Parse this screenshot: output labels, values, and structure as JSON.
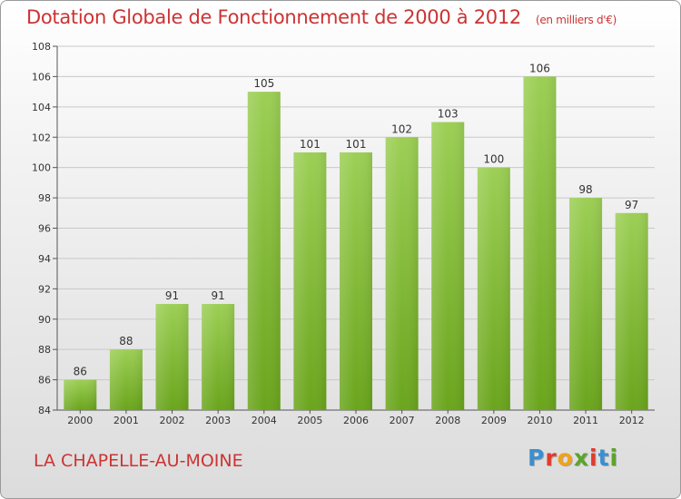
{
  "header": {
    "title": "Dotation Globale de Fonctionnement de 2000 à 2012",
    "unit": "(en milliers d'€)"
  },
  "footer": {
    "commune": "LA CHAPELLE-AU-MOINE",
    "logo_letters": [
      "P",
      "r",
      "o",
      "x",
      "i",
      "t",
      "i"
    ],
    "logo_colors": [
      "#3a8fd0",
      "#e23b2e",
      "#f0a21a",
      "#5aa52a",
      "#e23b2e",
      "#3a8fd0",
      "#5aa52a"
    ]
  },
  "colors": {
    "title": "#cc3333",
    "bar_top": "#9ccf55",
    "bar_bottom": "#6aa51c",
    "grid": "#c8c8c8",
    "axis": "#555555"
  },
  "chart_data": {
    "type": "bar",
    "title": "Dotation Globale de Fonctionnement de 2000 à 2012",
    "xlabel": "",
    "ylabel": "",
    "ylim": [
      84,
      108
    ],
    "yticks": [
      84,
      86,
      88,
      90,
      92,
      94,
      96,
      98,
      100,
      102,
      104,
      106,
      108
    ],
    "categories": [
      "2000",
      "2001",
      "2002",
      "2003",
      "2004",
      "2005",
      "2006",
      "2007",
      "2008",
      "2009",
      "2010",
      "2011",
      "2012"
    ],
    "values": [
      86,
      88,
      91,
      91,
      105,
      101,
      101,
      102,
      103,
      100,
      106,
      98,
      97
    ],
    "grid": true
  }
}
